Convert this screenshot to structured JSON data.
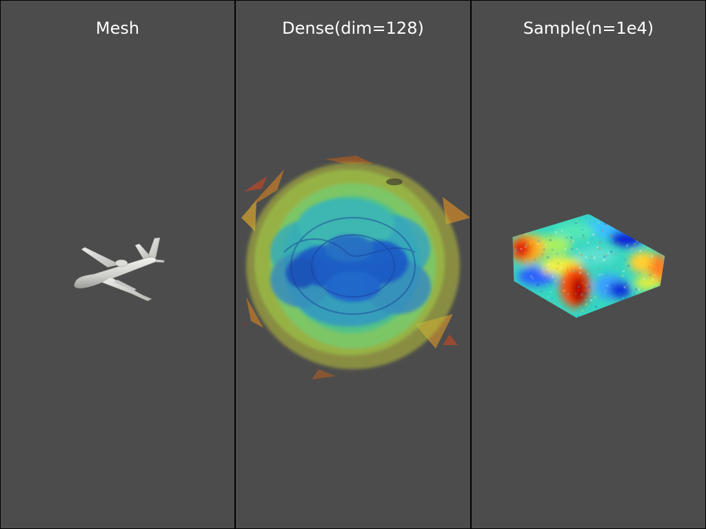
{
  "panes": [
    {
      "id": "mesh",
      "title": "Mesh",
      "content": "airplane-mesh"
    },
    {
      "id": "dense",
      "title": "Dense(dim=128)",
      "content": "sdf-isosurfaces",
      "colormap": "jet"
    },
    {
      "id": "sample",
      "title": "Sample(n=1e4)",
      "content": "point-cloud-cube",
      "colormap": "jet"
    }
  ],
  "colors": {
    "background": "#4c4c4c",
    "divider": "#000000",
    "title_text": "#ffffff",
    "mesh_surface": "#d8d8d4",
    "jet_low": "#0022cc",
    "jet_mid": "#3ff0a0",
    "jet_high": "#cc0000"
  }
}
